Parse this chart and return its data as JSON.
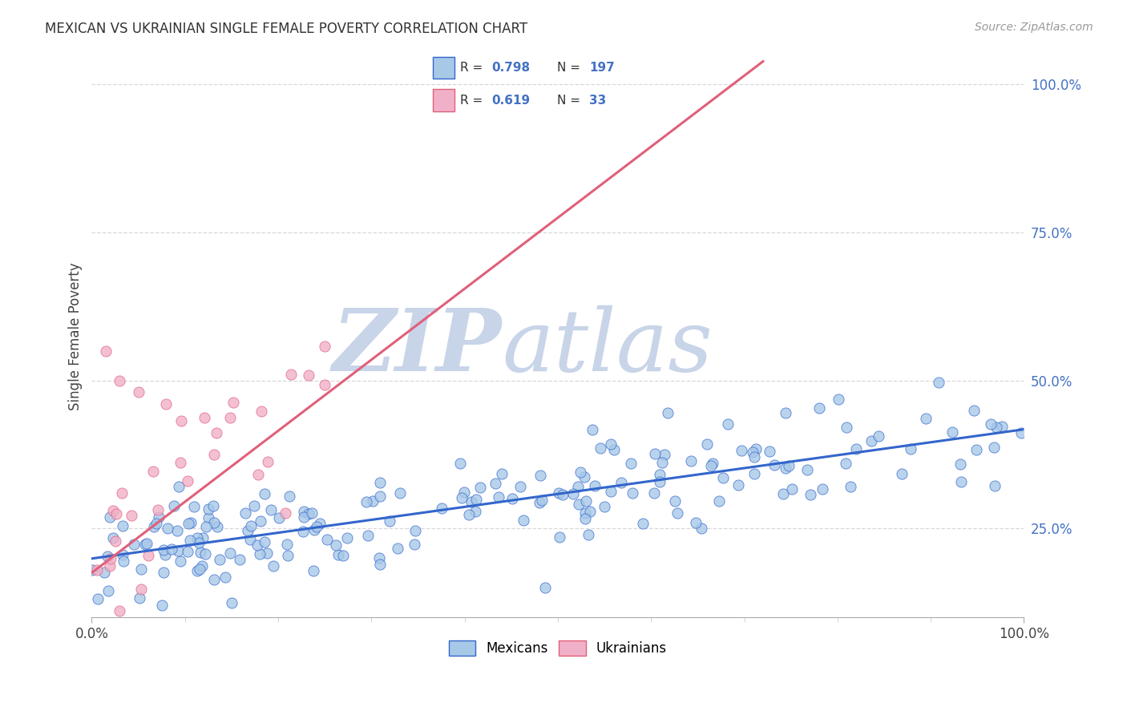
{
  "title": "MEXICAN VS UKRAINIAN SINGLE FEMALE POVERTY CORRELATION CHART",
  "source": "Source: ZipAtlas.com",
  "ylabel": "Single Female Poverty",
  "mexican_color": "#a8c8e8",
  "ukrainian_color": "#f0b0c8",
  "mexican_line_color": "#3366cc",
  "ukrainian_line_color": "#e0607a",
  "R_mexican": 0.798,
  "N_mexican": 197,
  "R_ukrainian": 0.619,
  "N_ukrainian": 33,
  "tick_color": "#4472c4",
  "title_color": "#333333",
  "source_color": "#999999",
  "grid_color": "#d8d8d8",
  "background_color": "#ffffff",
  "watermark_color": "#c8d4e8",
  "mexicans_label": "Mexicans",
  "ukrainians_label": "Ukrainians",
  "xlim": [
    0.0,
    1.0
  ],
  "ylim": [
    0.1,
    1.05
  ],
  "yticks": [
    0.25,
    0.5,
    0.75,
    1.0
  ],
  "ytick_labels": [
    "25.0%",
    "50.0%",
    "75.0%",
    "100.0%"
  ]
}
